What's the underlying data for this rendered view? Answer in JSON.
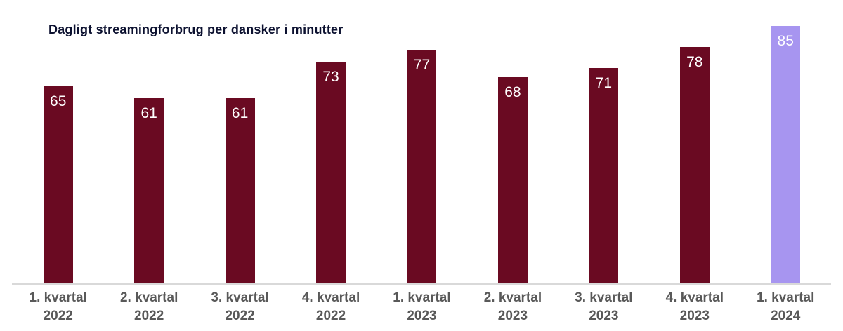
{
  "chart_data": {
    "type": "bar",
    "title": "Dagligt streamingforbrug per dansker i minutter",
    "categories": [
      "1. kvartal 2022",
      "2. kvartal 2022",
      "3. kvartal 2022",
      "4. kvartal 2022",
      "1. kvartal 2023",
      "2. kvartal 2023",
      "3. kvartal 2023",
      "4. kvartal 2023",
      "1. kvartal 2024"
    ],
    "values": [
      65,
      61,
      61,
      73,
      77,
      68,
      71,
      78,
      85
    ],
    "xlabel": "",
    "ylabel": "",
    "ylim": [
      0,
      93
    ],
    "grid": false,
    "legend": false,
    "value_labels_inside_bars": true,
    "bar_color": "#6A0A22",
    "highlight_bar_color": "#A795F0",
    "highlight_index": 8,
    "title_color": "#0C1130",
    "value_label_color": "#FFFFFF",
    "tick_label_color": "#595959",
    "axis_line_color": "#D9D9D9",
    "background_color": "#FFFFFF"
  }
}
